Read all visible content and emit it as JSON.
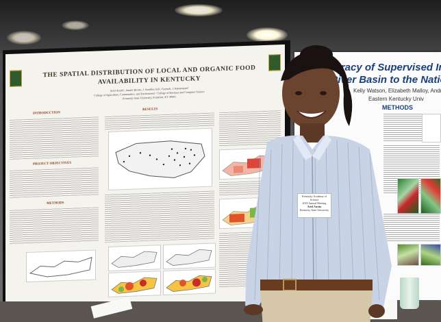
{
  "left_poster": {
    "title_line1": "THE SPATIAL DISTRIBUTION OF LOCAL AND ORGANIC FOOD",
    "title_line2": "AVAILABILITY IN KENTUCKY",
    "authors": "Ariel Austin¹, Jazzmi Brown, J. Sandifer, B.K. Gyawali, J. Ramanujam²",
    "affiliation1": "College of Agriculture, Communities, and Environment  ² College of Business and Computer Science",
    "affiliation2": "Kentucky State University, Frankfort, KY 40601",
    "sections": {
      "introduction": "INTRODUCTION",
      "results": "RESULTS",
      "objectives": "PROJECT OBJECTIVES",
      "methods": "METHODS"
    }
  },
  "right_poster": {
    "title_line1": "ccuracy of Supervised Image",
    "title_line2": "y River Basin to the Natio",
    "authors": "Kelly Watson, Elizabeth Malloy, Andre",
    "institution": "Eastern Kentucky Univ",
    "methods_heading": "METHODS"
  },
  "badge": {
    "line1": "Kentucky Academy of Science",
    "line2": "2018 Annual Meeting",
    "line3": "Ariel Austin",
    "line4": "Kentucky State University"
  },
  "colors": {
    "poster_title": "#3b3325",
    "section_heading": "#8a3b1c",
    "right_accent": "#1a3f7a",
    "shirt": "#c9d3e6",
    "skin": "#6b4430"
  }
}
